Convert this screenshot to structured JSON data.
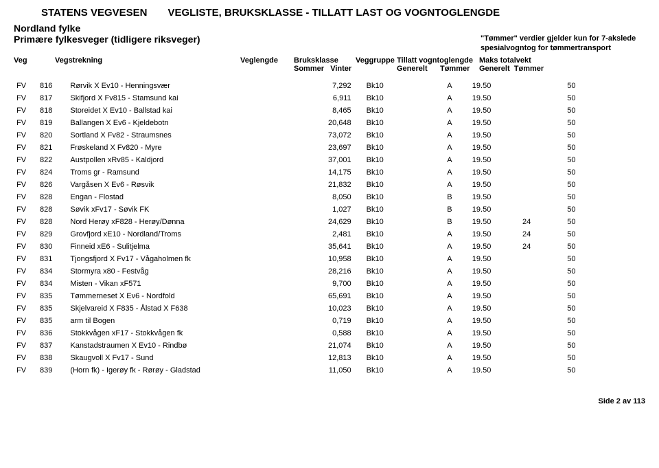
{
  "header": {
    "org": "STATENS VEGVESEN",
    "doc_title": "VEGLISTE, BRUKSKLASSE - TILLATT LAST OG VOGNTOGLENGDE",
    "region": "Nordland fylke",
    "subtitle": "Primære fylkesveger (tidligere riksveger)",
    "note_line1": "\"Tømmer\" verdier gjelder kun for 7-akslede",
    "note_line2": "spesialvogntog for tømmertransport"
  },
  "columns": {
    "veg": "Veg",
    "vegstrekning": "Vegstrekning",
    "veglengde": "Veglengde",
    "bruksklasse": "Bruksklasse",
    "bk_sommer": "Sommer",
    "bk_vinter": "Vinter",
    "veggruppe": "Veggruppe",
    "tillatt": "Tillatt vogntoglengde",
    "maks": "Maks totalvekt",
    "generelt": "Generelt",
    "tommer": "Tømmer"
  },
  "rows": [
    {
      "t": "FV",
      "n": "816",
      "s": "Rørvik X Ev10 - Henningsvær",
      "l": "7,292",
      "bk": "Bk10",
      "g": "A",
      "tg": "19.50",
      "tt": "",
      "mg": "50",
      "mt": ""
    },
    {
      "t": "FV",
      "n": "817",
      "s": "Skifjord X Fv815 - Stamsund kai",
      "l": "6,911",
      "bk": "Bk10",
      "g": "A",
      "tg": "19.50",
      "tt": "",
      "mg": "50",
      "mt": ""
    },
    {
      "t": "FV",
      "n": "818",
      "s": "Storeidet X Ev10 - Ballstad kai",
      "l": "8,465",
      "bk": "Bk10",
      "g": "A",
      "tg": "19.50",
      "tt": "",
      "mg": "50",
      "mt": ""
    },
    {
      "t": "FV",
      "n": "819",
      "s": "Ballangen X Ev6 - Kjeldebotn",
      "l": "20,648",
      "bk": "Bk10",
      "g": "A",
      "tg": "19.50",
      "tt": "",
      "mg": "50",
      "mt": ""
    },
    {
      "t": "FV",
      "n": "820",
      "s": "Sortland X Fv82 - Straumsnes",
      "l": "73,072",
      "bk": "Bk10",
      "g": "A",
      "tg": "19.50",
      "tt": "",
      "mg": "50",
      "mt": ""
    },
    {
      "t": "FV",
      "n": "821",
      "s": "Frøskeland X Fv820 - Myre",
      "l": "23,697",
      "bk": "Bk10",
      "g": "A",
      "tg": "19.50",
      "tt": "",
      "mg": "50",
      "mt": ""
    },
    {
      "t": "FV",
      "n": "822",
      "s": "Austpollen xRv85 - Kaldjord",
      "l": "37,001",
      "bk": "Bk10",
      "g": "A",
      "tg": "19.50",
      "tt": "",
      "mg": "50",
      "mt": ""
    },
    {
      "t": "FV",
      "n": "824",
      "s": "Troms gr - Ramsund",
      "l": "14,175",
      "bk": "Bk10",
      "g": "A",
      "tg": "19.50",
      "tt": "",
      "mg": "50",
      "mt": ""
    },
    {
      "t": "FV",
      "n": "826",
      "s": "Vargåsen X Ev6 - Røsvik",
      "l": "21,832",
      "bk": "Bk10",
      "g": "A",
      "tg": "19.50",
      "tt": "",
      "mg": "50",
      "mt": ""
    },
    {
      "t": "FV",
      "n": "828",
      "s": "Engan - Flostad",
      "l": "8,050",
      "bk": "Bk10",
      "g": "B",
      "tg": "19.50",
      "tt": "",
      "mg": "50",
      "mt": ""
    },
    {
      "t": "FV",
      "n": "828",
      "s": "Søvik xFv17 - Søvik FK",
      "l": "1,027",
      "bk": "Bk10",
      "g": "B",
      "tg": "19.50",
      "tt": "",
      "mg": "50",
      "mt": ""
    },
    {
      "t": "FV",
      "n": "828",
      "s": "Nord Herøy xF828 - Herøy/Dønna",
      "l": "24,629",
      "bk": "Bk10",
      "g": "B",
      "tg": "19.50",
      "tt": "24",
      "mg": "50",
      "mt": ""
    },
    {
      "t": "FV",
      "n": "829",
      "s": "Grovfjord xE10 - Nordland/Troms",
      "l": "2,481",
      "bk": "Bk10",
      "g": "A",
      "tg": "19.50",
      "tt": "24",
      "mg": "50",
      "mt": ""
    },
    {
      "t": "FV",
      "n": "830",
      "s": "Finneid xE6 - Sulitjelma",
      "l": "35,641",
      "bk": "Bk10",
      "g": "A",
      "tg": "19.50",
      "tt": "24",
      "mg": "50",
      "mt": ""
    },
    {
      "t": "FV",
      "n": "831",
      "s": "Tjongsfjord X Fv17 - Vågaholmen fk",
      "l": "10,958",
      "bk": "Bk10",
      "g": "A",
      "tg": "19.50",
      "tt": "",
      "mg": "50",
      "mt": ""
    },
    {
      "t": "FV",
      "n": "834",
      "s": "Stormyra x80 - Festvåg",
      "l": "28,216",
      "bk": "Bk10",
      "g": "A",
      "tg": "19.50",
      "tt": "",
      "mg": "50",
      "mt": ""
    },
    {
      "t": "FV",
      "n": "834",
      "s": "Misten - Vikan xF571",
      "l": "9,700",
      "bk": "Bk10",
      "g": "A",
      "tg": "19.50",
      "tt": "",
      "mg": "50",
      "mt": ""
    },
    {
      "t": "FV",
      "n": "835",
      "s": "Tømmerneset X Ev6 - Nordfold",
      "l": "65,691",
      "bk": "Bk10",
      "g": "A",
      "tg": "19.50",
      "tt": "",
      "mg": "50",
      "mt": ""
    },
    {
      "t": "FV",
      "n": "835",
      "s": "Skjelvareid X F835 - Ålstad X F638",
      "l": "10,023",
      "bk": "Bk10",
      "g": "A",
      "tg": "19.50",
      "tt": "",
      "mg": "50",
      "mt": ""
    },
    {
      "t": "FV",
      "n": "835",
      "s": "arm til Bogen",
      "l": "0,719",
      "bk": "Bk10",
      "g": "A",
      "tg": "19.50",
      "tt": "",
      "mg": "50",
      "mt": ""
    },
    {
      "t": "FV",
      "n": "836",
      "s": "Stokkvågen xF17 - Stokkvågen fk",
      "l": "0,588",
      "bk": "Bk10",
      "g": "A",
      "tg": "19.50",
      "tt": "",
      "mg": "50",
      "mt": ""
    },
    {
      "t": "FV",
      "n": "837",
      "s": "Kanstadstraumen X Ev10 - Rindbø",
      "l": "21,074",
      "bk": "Bk10",
      "g": "A",
      "tg": "19.50",
      "tt": "",
      "mg": "50",
      "mt": ""
    },
    {
      "t": "FV",
      "n": "838",
      "s": "Skaugvoll X Fv17 - Sund",
      "l": "12,813",
      "bk": "Bk10",
      "g": "A",
      "tg": "19.50",
      "tt": "",
      "mg": "50",
      "mt": ""
    },
    {
      "t": "FV",
      "n": "839",
      "s": "(Horn fk) - Igerøy fk - Rørøy - Gladstad",
      "l": "11,050",
      "bk": "Bk10",
      "g": "A",
      "tg": "19.50",
      "tt": "",
      "mg": "50",
      "mt": ""
    }
  ],
  "footer": {
    "page_label": "Side 2 av 113"
  }
}
